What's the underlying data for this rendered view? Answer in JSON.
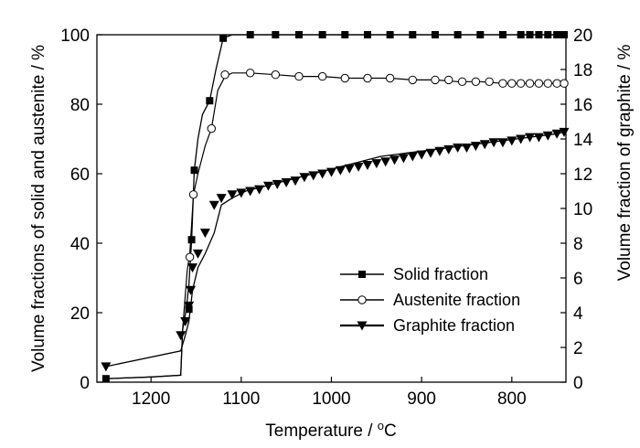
{
  "chart_data": {
    "type": "line",
    "xlabel": "Temperature / °C",
    "ylabel_left": "Volume fractions of solid and austenite / %",
    "ylabel_right": "Volume fraction of graphite / %",
    "xlim": [
      1260,
      740
    ],
    "ylim_left": [
      0,
      100
    ],
    "ylim_right": [
      0,
      20
    ],
    "x_ticks": [
      "1200",
      "1100",
      "1000",
      "900",
      "800"
    ],
    "y_left_ticks": [
      "0",
      "20",
      "40",
      "60",
      "80",
      "100"
    ],
    "y_right_ticks": [
      "0",
      "2",
      "4",
      "6",
      "8",
      "10",
      "12",
      "14",
      "16",
      "18",
      "20"
    ],
    "legend_position": "lower-right",
    "series": [
      {
        "name": "Solid fraction",
        "axis": "left",
        "marker": "square",
        "x": [
          1250,
          1200,
          1167,
          1165,
          1161,
          1158,
          1155,
          1152,
          1148,
          1143,
          1135,
          1128,
          1120,
          1115,
          1110,
          1090,
          1062,
          1036,
          1010,
          985,
          960,
          935,
          910,
          885,
          860,
          835,
          810,
          790,
          770,
          760,
          750,
          742
        ],
        "y": [
          1,
          1.5,
          2,
          15,
          21,
          28,
          41,
          61,
          70,
          77,
          81,
          90,
          99,
          99.5,
          100,
          100,
          100,
          100,
          100,
          100,
          100,
          100,
          100,
          100,
          100,
          100,
          100,
          100,
          100,
          100,
          100,
          100
        ],
        "marker_x": [
          1250,
          1158,
          1155,
          1152,
          1135,
          1120,
          1090,
          1062,
          1036,
          1010,
          985,
          960,
          935,
          910,
          885,
          860,
          835,
          810,
          790,
          780,
          770,
          760,
          750,
          742
        ],
        "marker_y": [
          1,
          21,
          41,
          61,
          81,
          99,
          100,
          100,
          100,
          100,
          100,
          100,
          100,
          100,
          100,
          100,
          100,
          100,
          100,
          100,
          100,
          100,
          100,
          100
        ]
      },
      {
        "name": "Austenite fraction",
        "axis": "left",
        "marker": "circle",
        "x": [
          1250,
          1200,
          1167,
          1165,
          1160,
          1157,
          1153,
          1148,
          1140,
          1133,
          1126,
          1118,
          1110,
          1090,
          1062,
          1036,
          1010,
          985,
          960,
          935,
          910,
          885,
          860,
          835,
          810,
          790,
          770,
          760,
          750,
          742
        ],
        "y": [
          1,
          1.5,
          2,
          15,
          32,
          37,
          54,
          60,
          68,
          73,
          84,
          88,
          89,
          89,
          88.5,
          88,
          88,
          87.5,
          87.5,
          87.5,
          87,
          87,
          86.5,
          86.5,
          86,
          86,
          86,
          86,
          86,
          86
        ],
        "marker_x": [
          1157,
          1153,
          1133,
          1118,
          1090,
          1062,
          1036,
          1010,
          985,
          960,
          935,
          910,
          885,
          870,
          855,
          840,
          825,
          810,
          800,
          790,
          780,
          770,
          760,
          750,
          742
        ],
        "marker_y": [
          36,
          54,
          73,
          88.5,
          89,
          88.5,
          88,
          88,
          87.5,
          87.5,
          87.5,
          87,
          87,
          87,
          86.5,
          86.5,
          86.5,
          86,
          86,
          86,
          86,
          86,
          86,
          86,
          86
        ]
      },
      {
        "name": "Graphite fraction",
        "axis": "right",
        "marker": "triangle-down",
        "x": [
          1250,
          1167,
          1162,
          1158,
          1154,
          1148,
          1140,
          1130,
          1122,
          1110,
          1095,
          1080,
          1065,
          1050,
          1035,
          1020,
          1005,
          990,
          975,
          960,
          945,
          930,
          915,
          900,
          885,
          870,
          855,
          840,
          825,
          810,
          795,
          780,
          765,
          750,
          742
        ],
        "y": [
          0.9,
          1.8,
          2.7,
          3.5,
          5.3,
          6.6,
          7.4,
          8.6,
          10.2,
          10.6,
          11.0,
          11.2,
          11.4,
          11.6,
          11.8,
          12.0,
          12.2,
          12.4,
          12.6,
          12.8,
          13.0,
          13.1,
          13.2,
          13.3,
          13.4,
          13.5,
          13.6,
          13.7,
          13.8,
          13.9,
          14.0,
          14.1,
          14.2,
          14.3,
          14.4
        ],
        "marker_x": [
          1250,
          1167,
          1162,
          1158,
          1156,
          1154,
          1148,
          1140,
          1130,
          1122,
          1110,
          1100,
          1090,
          1080,
          1070,
          1060,
          1050,
          1040,
          1030,
          1020,
          1010,
          1000,
          990,
          980,
          970,
          960,
          950,
          940,
          930,
          920,
          910,
          900,
          890,
          880,
          870,
          860,
          850,
          840,
          830,
          820,
          810,
          800,
          790,
          780,
          770,
          760,
          750,
          742
        ],
        "marker_y": [
          0.9,
          2.7,
          3.5,
          4.4,
          5.3,
          6.6,
          7.4,
          8.6,
          10.2,
          10.6,
          10.8,
          10.9,
          11.0,
          11.1,
          11.3,
          11.4,
          11.5,
          11.6,
          11.8,
          11.9,
          12.0,
          12.1,
          12.2,
          12.3,
          12.4,
          12.5,
          12.6,
          12.7,
          12.8,
          12.9,
          13.0,
          13.1,
          13.2,
          13.3,
          13.4,
          13.5,
          13.5,
          13.6,
          13.7,
          13.8,
          13.8,
          13.9,
          14.0,
          14.1,
          14.1,
          14.2,
          14.3,
          14.4
        ]
      }
    ]
  }
}
